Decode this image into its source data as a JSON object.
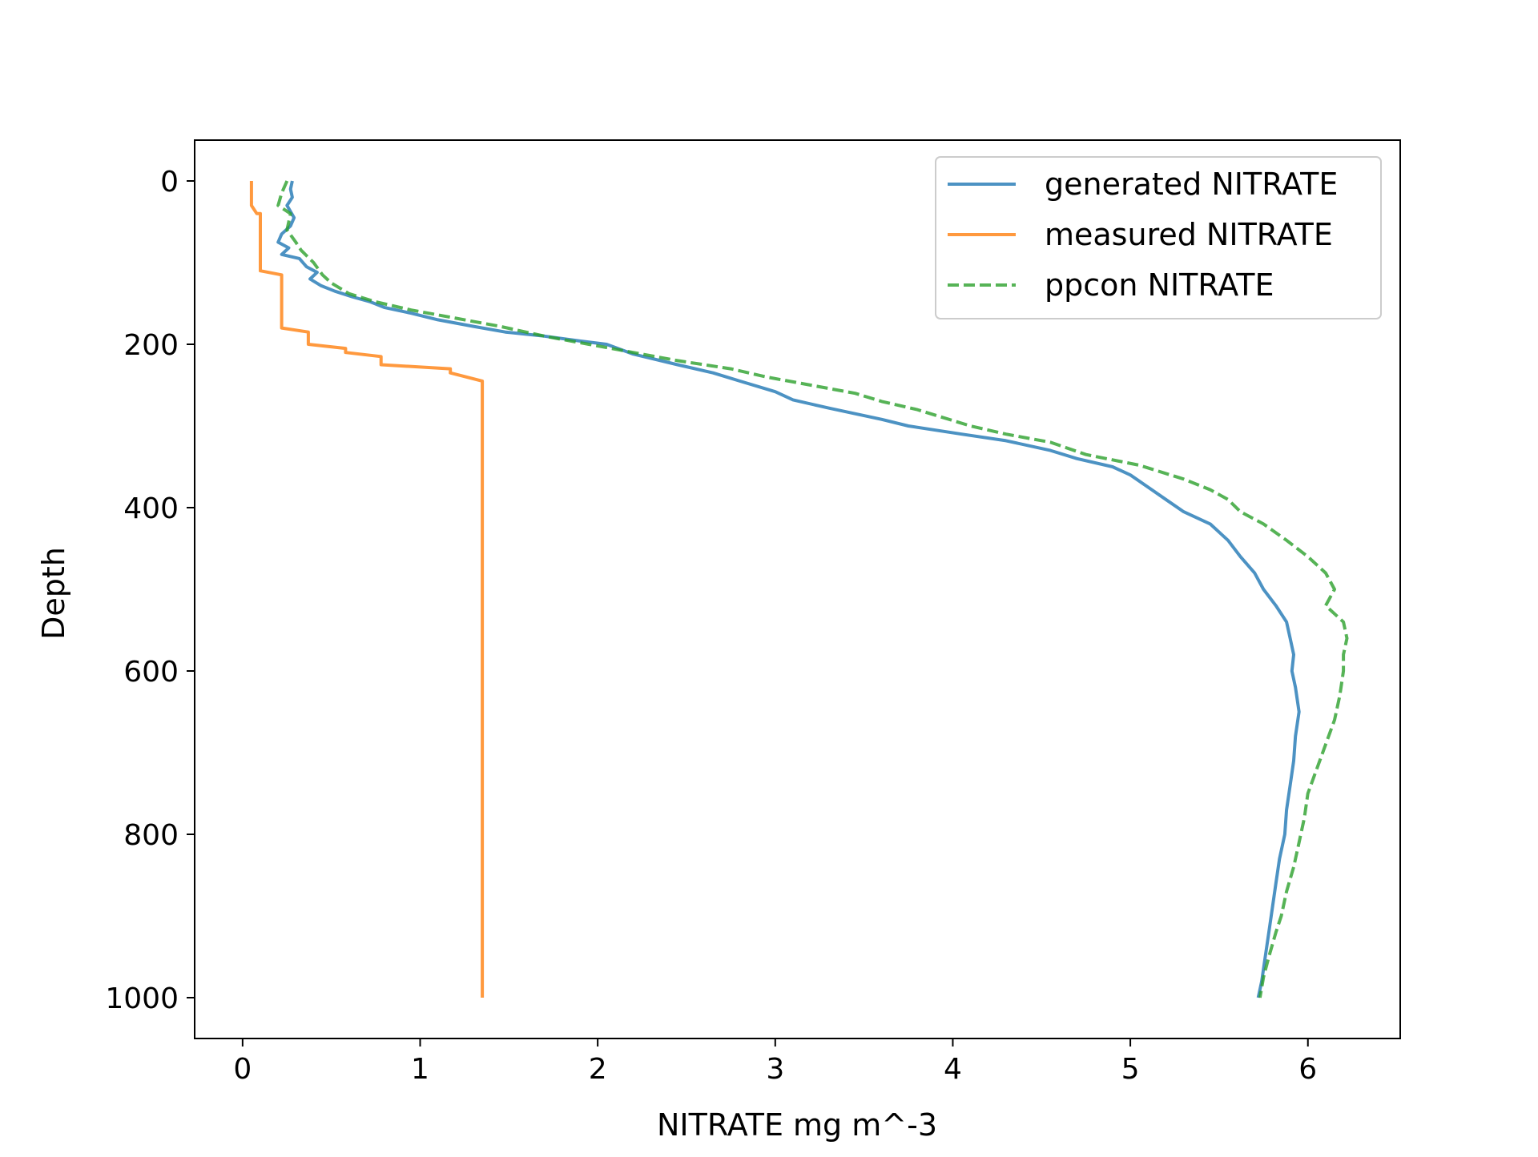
{
  "chart_data": {
    "type": "line",
    "xlabel": "NITRATE mg m^-3",
    "ylabel": "Depth",
    "xlim": [
      -0.27,
      6.52
    ],
    "ylim": [
      1050,
      -50
    ],
    "y_inverted": true,
    "x_ticks": [
      0,
      1,
      2,
      3,
      4,
      5,
      6
    ],
    "x_tick_labels": [
      "0",
      "1",
      "2",
      "3",
      "4",
      "5",
      "6"
    ],
    "y_ticks": [
      0,
      200,
      400,
      600,
      800,
      1000
    ],
    "y_tick_labels": [
      "0",
      "200",
      "400",
      "600",
      "800",
      "1000"
    ],
    "grid": false,
    "legend_position": "top-right",
    "series": [
      {
        "name": "generated NITRATE",
        "color": "#1f77b4",
        "style": "solid",
        "points": [
          [
            0.28,
            0
          ],
          [
            0.27,
            10
          ],
          [
            0.28,
            20
          ],
          [
            0.25,
            30
          ],
          [
            0.29,
            45
          ],
          [
            0.27,
            55
          ],
          [
            0.22,
            65
          ],
          [
            0.2,
            75
          ],
          [
            0.26,
            82
          ],
          [
            0.22,
            90
          ],
          [
            0.32,
            95
          ],
          [
            0.36,
            105
          ],
          [
            0.42,
            112
          ],
          [
            0.38,
            120
          ],
          [
            0.44,
            128
          ],
          [
            0.52,
            135
          ],
          [
            0.62,
            142
          ],
          [
            0.72,
            148
          ],
          [
            0.8,
            155
          ],
          [
            0.95,
            162
          ],
          [
            1.1,
            170
          ],
          [
            1.3,
            178
          ],
          [
            1.48,
            185
          ],
          [
            1.7,
            190
          ],
          [
            1.9,
            196
          ],
          [
            2.05,
            200
          ],
          [
            2.2,
            212
          ],
          [
            2.45,
            225
          ],
          [
            2.65,
            235
          ],
          [
            2.8,
            245
          ],
          [
            3.0,
            258
          ],
          [
            3.1,
            268
          ],
          [
            3.3,
            278
          ],
          [
            3.6,
            292
          ],
          [
            3.75,
            300
          ],
          [
            4.05,
            310
          ],
          [
            4.3,
            318
          ],
          [
            4.55,
            330
          ],
          [
            4.7,
            340
          ],
          [
            4.9,
            350
          ],
          [
            5.0,
            360
          ],
          [
            5.1,
            375
          ],
          [
            5.2,
            390
          ],
          [
            5.3,
            405
          ],
          [
            5.45,
            420
          ],
          [
            5.55,
            440
          ],
          [
            5.62,
            460
          ],
          [
            5.7,
            480
          ],
          [
            5.75,
            500
          ],
          [
            5.82,
            520
          ],
          [
            5.88,
            540
          ],
          [
            5.9,
            560
          ],
          [
            5.92,
            580
          ],
          [
            5.91,
            600
          ],
          [
            5.93,
            620
          ],
          [
            5.95,
            650
          ],
          [
            5.93,
            680
          ],
          [
            5.92,
            710
          ],
          [
            5.9,
            740
          ],
          [
            5.88,
            770
          ],
          [
            5.87,
            800
          ],
          [
            5.84,
            830
          ],
          [
            5.82,
            860
          ],
          [
            5.8,
            890
          ],
          [
            5.78,
            920
          ],
          [
            5.76,
            950
          ],
          [
            5.74,
            980
          ],
          [
            5.72,
            1000
          ]
        ]
      },
      {
        "name": "measured NITRATE",
        "color": "#ff7f0e",
        "style": "solid",
        "points": [
          [
            0.05,
            0
          ],
          [
            0.05,
            30
          ],
          [
            0.08,
            40
          ],
          [
            0.1,
            40
          ],
          [
            0.1,
            110
          ],
          [
            0.22,
            115
          ],
          [
            0.22,
            180
          ],
          [
            0.37,
            185
          ],
          [
            0.37,
            200
          ],
          [
            0.58,
            205
          ],
          [
            0.58,
            210
          ],
          [
            0.78,
            215
          ],
          [
            0.78,
            225
          ],
          [
            1.17,
            230
          ],
          [
            1.17,
            235
          ],
          [
            1.35,
            245
          ],
          [
            1.35,
            1000
          ]
        ]
      },
      {
        "name": "ppcon NITRATE",
        "color": "#2ca02c",
        "style": "dashed",
        "points": [
          [
            0.25,
            0
          ],
          [
            0.22,
            15
          ],
          [
            0.2,
            30
          ],
          [
            0.27,
            40
          ],
          [
            0.25,
            60
          ],
          [
            0.3,
            75
          ],
          [
            0.33,
            85
          ],
          [
            0.4,
            100
          ],
          [
            0.45,
            115
          ],
          [
            0.5,
            125
          ],
          [
            0.6,
            138
          ],
          [
            0.75,
            148
          ],
          [
            0.95,
            158
          ],
          [
            1.2,
            168
          ],
          [
            1.45,
            178
          ],
          [
            1.7,
            190
          ],
          [
            1.95,
            200
          ],
          [
            2.2,
            210
          ],
          [
            2.45,
            220
          ],
          [
            2.75,
            230
          ],
          [
            2.95,
            240
          ],
          [
            3.2,
            250
          ],
          [
            3.45,
            260
          ],
          [
            3.6,
            270
          ],
          [
            3.8,
            280
          ],
          [
            4.1,
            300
          ],
          [
            4.3,
            310
          ],
          [
            4.55,
            320
          ],
          [
            4.75,
            335
          ],
          [
            5.05,
            348
          ],
          [
            5.3,
            365
          ],
          [
            5.45,
            378
          ],
          [
            5.55,
            390
          ],
          [
            5.62,
            405
          ],
          [
            5.75,
            420
          ],
          [
            5.88,
            440
          ],
          [
            6.0,
            460
          ],
          [
            6.1,
            480
          ],
          [
            6.15,
            500
          ],
          [
            6.1,
            520
          ],
          [
            6.2,
            540
          ],
          [
            6.22,
            560
          ],
          [
            6.2,
            580
          ],
          [
            6.2,
            600
          ],
          [
            6.18,
            630
          ],
          [
            6.15,
            660
          ],
          [
            6.1,
            690
          ],
          [
            6.05,
            720
          ],
          [
            6.0,
            750
          ],
          [
            5.98,
            780
          ],
          [
            5.95,
            810
          ],
          [
            5.92,
            840
          ],
          [
            5.88,
            870
          ],
          [
            5.85,
            900
          ],
          [
            5.82,
            920
          ],
          [
            5.78,
            950
          ],
          [
            5.75,
            975
          ],
          [
            5.73,
            1000
          ]
        ]
      }
    ]
  }
}
